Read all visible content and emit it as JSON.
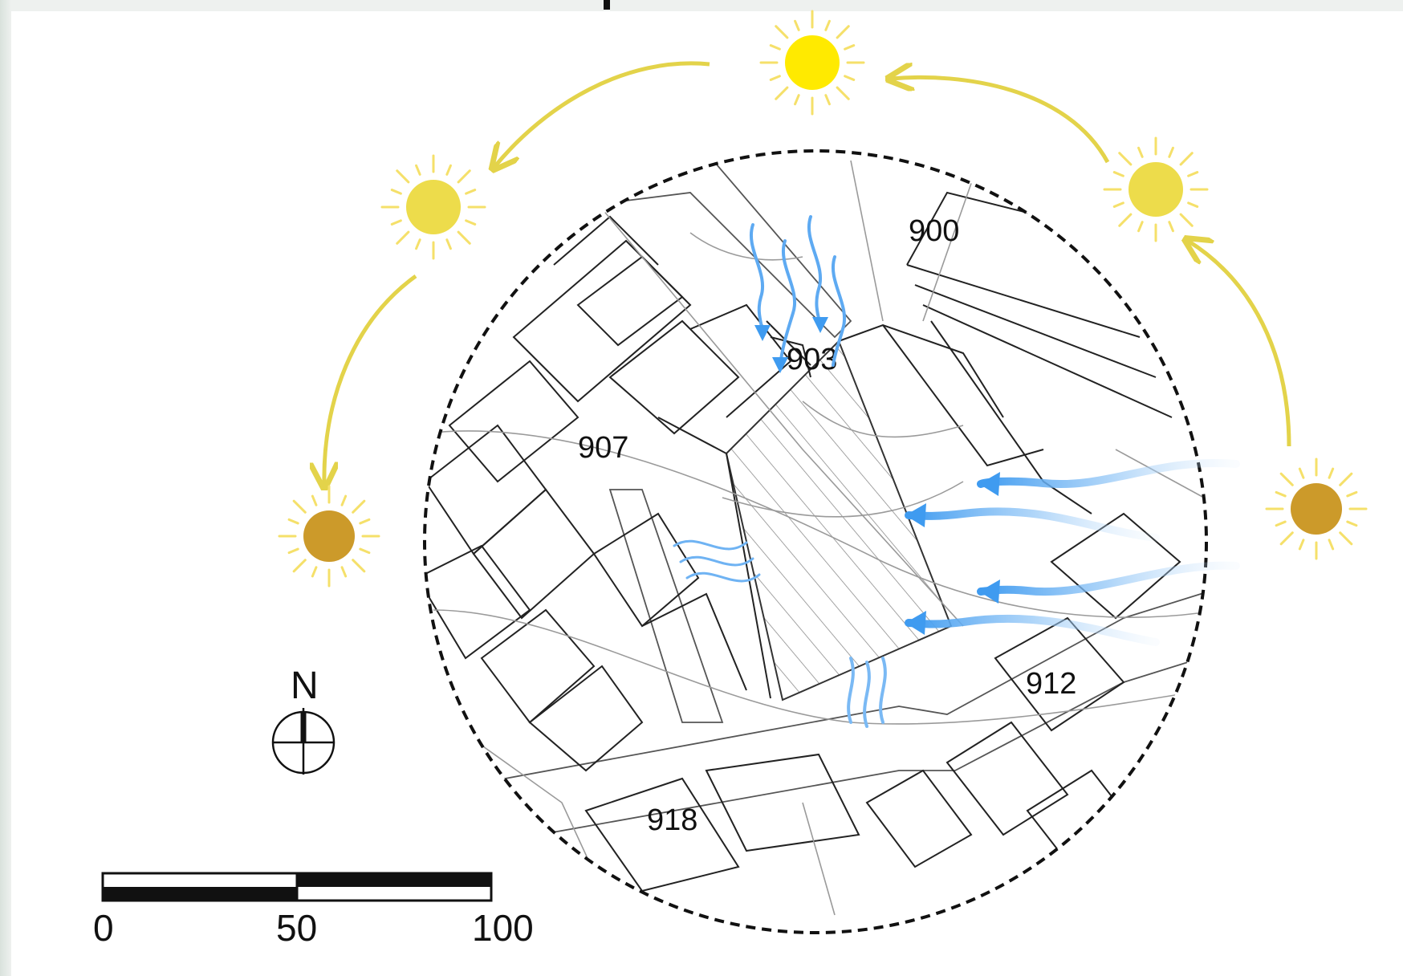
{
  "map": {
    "plot_labels": {
      "p900": "900",
      "p903": "903",
      "p907": "907",
      "p912": "912",
      "p918": "918"
    },
    "north_label": "N",
    "scale_bar": {
      "tick_0": "0",
      "tick_50": "50",
      "tick_100": "100"
    },
    "sun_path": {
      "suns": [
        "sunrise-east",
        "morning-east",
        "noon-north",
        "afternoon-west",
        "sunset-west"
      ],
      "sun_colors": {
        "bright": "#ffea00",
        "mid": "#eddc4b",
        "low": "#cc9a2a",
        "rays": "#f5e06a",
        "arc": "#e3d34a"
      }
    },
    "wind": {
      "color": "#3f9bf0",
      "directions": [
        "from-east",
        "from-north",
        "local-eddy-west",
        "local-rising-south"
      ]
    },
    "site_hatch_color": "#888888"
  }
}
